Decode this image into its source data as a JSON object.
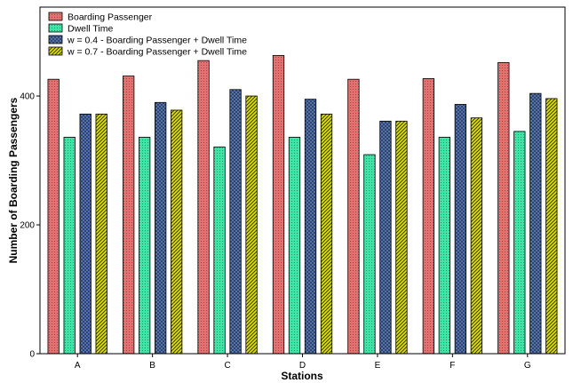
{
  "chart_data": {
    "type": "bar",
    "title": "",
    "xlabel": "Stations",
    "ylabel": "Number of Boarding  Passengers",
    "ylim": [
      0,
      538
    ],
    "yticks": [
      0,
      200,
      400
    ],
    "categories": [
      "A",
      "B",
      "C",
      "D",
      "E",
      "F",
      "G"
    ],
    "series": [
      {
        "name": "Boarding Passenger",
        "values": [
          426,
          431,
          455,
          463,
          426,
          427,
          452
        ],
        "color": "#e4716f",
        "pattern": "dots"
      },
      {
        "name": "Dwell Time",
        "values": [
          336,
          336,
          321,
          336,
          309,
          336,
          345
        ],
        "color": "#3ee5a6",
        "pattern": "dots"
      },
      {
        "name": "w = 0.4 - Boarding Passenger + Dwell Time",
        "values": [
          372,
          390,
          410,
          395,
          361,
          387,
          404
        ],
        "color": "#5b7fbf",
        "pattern": "crosshatch"
      },
      {
        "name": "w = 0.7 - Boarding Passenger + Dwell Time",
        "values": [
          372,
          378,
          400,
          372,
          361,
          366,
          396
        ],
        "color": "#dddd1e",
        "pattern": "diagonal"
      }
    ],
    "grid": false,
    "legend_position": "top-left"
  }
}
